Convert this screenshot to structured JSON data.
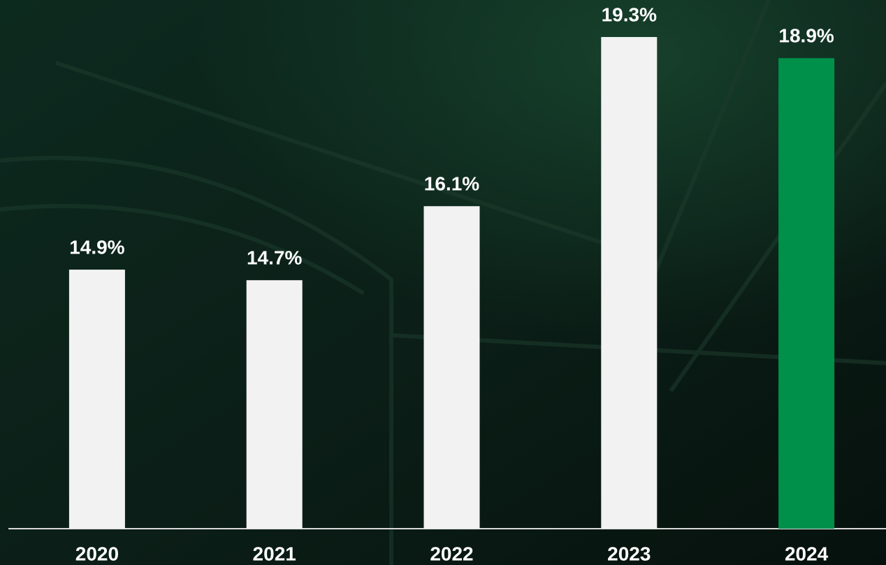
{
  "chart_data": {
    "type": "bar",
    "categories": [
      "2020",
      "2021",
      "2022",
      "2023",
      "2024"
    ],
    "values": [
      14.9,
      14.7,
      16.1,
      19.3,
      18.9
    ],
    "value_labels": [
      "14.9%",
      "14.7%",
      "16.1%",
      "19.3%",
      "18.9%"
    ],
    "colors": [
      "#f2f2f2",
      "#f2f2f2",
      "#f2f2f2",
      "#f2f2f2",
      "#00904a"
    ],
    "ylim": [
      10,
      20
    ],
    "grid": false
  }
}
